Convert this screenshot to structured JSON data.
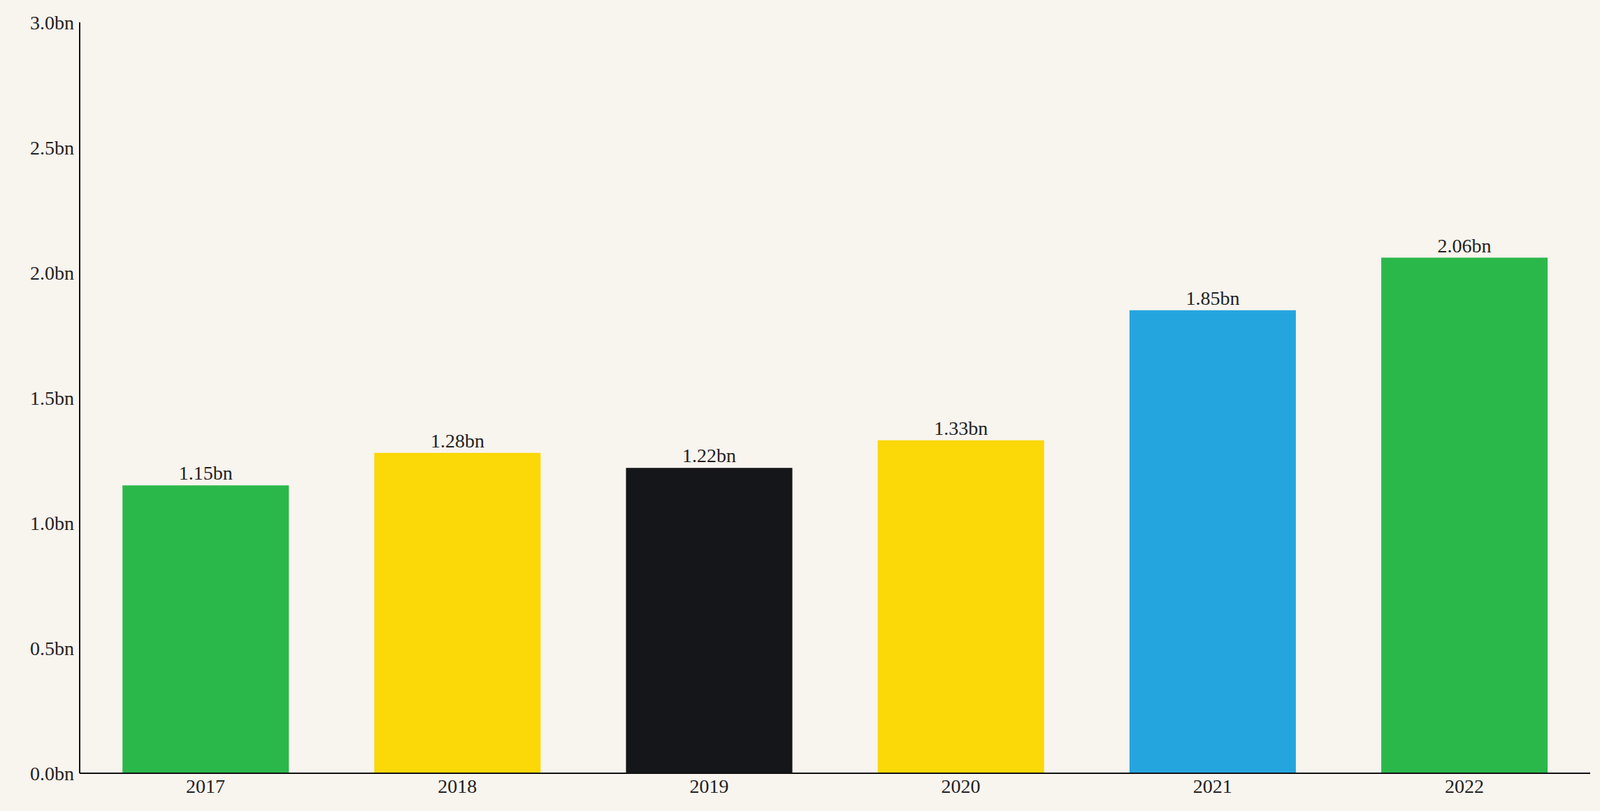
{
  "chart_data": {
    "type": "bar",
    "categories": [
      "2017",
      "2018",
      "2019",
      "2020",
      "2021",
      "2022"
    ],
    "values": [
      1.15,
      1.28,
      1.22,
      1.33,
      1.85,
      2.06
    ],
    "value_labels": [
      "1.15bn",
      "1.28bn",
      "1.22bn",
      "1.33bn",
      "1.85bn",
      "2.06bn"
    ],
    "colors": [
      "#2bb84b",
      "#fbd807",
      "#151619",
      "#fbd807",
      "#25a5de",
      "#2bb84b"
    ],
    "ylim": [
      0,
      3
    ],
    "yticks": [
      {
        "value": 0,
        "label": "0.0bn"
      },
      {
        "value": 0.5,
        "label": "0.5bn"
      },
      {
        "value": 1,
        "label": "1.0bn"
      },
      {
        "value": 1.5,
        "label": "1.5bn"
      },
      {
        "value": 2,
        "label": "2.0bn"
      },
      {
        "value": 2.5,
        "label": "2.5bn"
      },
      {
        "value": 3,
        "label": "3.0bn"
      }
    ],
    "grid": false,
    "data_labels": true
  }
}
